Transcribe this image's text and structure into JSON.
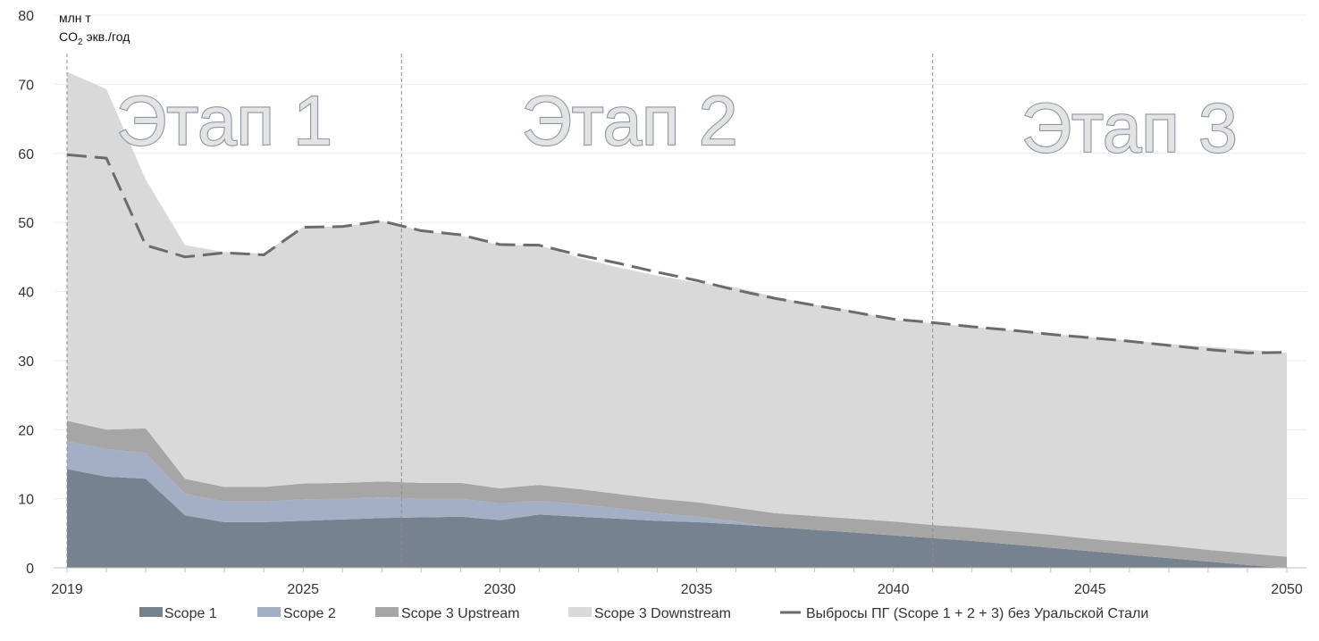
{
  "chart_data": {
    "type": "area",
    "title": "",
    "unit_label": {
      "line1": "млн т",
      "co2_prefix": "CO",
      "co2_sub": "2",
      "co2_suffix": " экв./год"
    },
    "ylim": [
      0,
      80
    ],
    "y_ticks": [
      0,
      10,
      20,
      30,
      40,
      50,
      60,
      70,
      80
    ],
    "x_ticks": [
      2019,
      2025,
      2030,
      2035,
      2040,
      2045,
      2050
    ],
    "stacked": true,
    "grid": true,
    "legend_position": "bottom",
    "x": [
      2019,
      2020,
      2021,
      2022,
      2023,
      2024,
      2025,
      2026,
      2027,
      2028,
      2029,
      2030,
      2031,
      2032,
      2033,
      2034,
      2035,
      2036,
      2037,
      2038,
      2039,
      2040,
      2041,
      2042,
      2043,
      2044,
      2045,
      2046,
      2047,
      2048,
      2049,
      2050
    ],
    "series": [
      {
        "name": "Scope 1",
        "color": "#76828f",
        "values": [
          14.3,
          13.2,
          12.9,
          7.6,
          6.6,
          6.6,
          6.8,
          7.0,
          7.2,
          7.3,
          7.4,
          6.9,
          7.7,
          7.4,
          7.1,
          6.8,
          6.6,
          6.3,
          5.9,
          5.5,
          5.1,
          4.7,
          4.3,
          3.9,
          3.4,
          2.9,
          2.4,
          1.9,
          1.4,
          0.9,
          0.4,
          0.0
        ]
      },
      {
        "name": "Scope 2",
        "color": "#a2afc4",
        "values": [
          4.0,
          4.0,
          3.7,
          3.1,
          3.0,
          3.0,
          3.1,
          3.0,
          3.0,
          2.7,
          2.6,
          2.4,
          2.0,
          1.8,
          1.5,
          1.1,
          0.8,
          0.4,
          0.0,
          0.0,
          0.0,
          0.0,
          0.0,
          0.0,
          0.0,
          0.0,
          0.0,
          0.0,
          0.0,
          0.0,
          0.0,
          0.0
        ]
      },
      {
        "name": "Scope 3 Upstream",
        "color": "#a6a6a6",
        "values": [
          3.0,
          2.8,
          3.6,
          2.2,
          2.1,
          2.1,
          2.3,
          2.3,
          2.3,
          2.3,
          2.3,
          2.2,
          2.3,
          2.2,
          2.1,
          2.1,
          2.1,
          2.0,
          2.0,
          2.0,
          2.0,
          2.0,
          1.9,
          1.9,
          1.9,
          1.9,
          1.8,
          1.8,
          1.8,
          1.7,
          1.7,
          1.6
        ]
      },
      {
        "name": "Scope 3 Downstream",
        "color": "#d9d9d9",
        "values": [
          50.5,
          49.3,
          36.0,
          33.8,
          34.0,
          33.8,
          37.1,
          37.1,
          37.7,
          36.5,
          35.8,
          35.2,
          34.7,
          33.5,
          32.8,
          32.3,
          31.8,
          31.9,
          31.3,
          30.6,
          30.1,
          29.2,
          29.2,
          29.1,
          29.1,
          29.1,
          29.2,
          29.2,
          29.2,
          29.4,
          29.5,
          29.5
        ]
      }
    ],
    "line_series": {
      "name": "Выбросы ПГ (Scope 1 + 2 + 3) без Уральской Стали",
      "color": "#6b6b6b",
      "style": "dashed",
      "values": [
        59.8,
        59.3,
        46.7,
        45.0,
        45.6,
        45.3,
        49.3,
        49.4,
        50.2,
        48.8,
        48.2,
        46.8,
        46.7,
        45.3,
        44.1,
        42.8,
        41.6,
        40.2,
        39.0,
        38.0,
        37.0,
        36.0,
        35.5,
        34.9,
        34.4,
        33.8,
        33.3,
        32.8,
        32.2,
        31.6,
        31.1,
        31.2
      ]
    },
    "phase_dividers": [
      2019,
      2027.5,
      2041
    ],
    "phases": [
      {
        "label": "Этап 1",
        "center_year": 2023
      },
      {
        "label": "Этап 2",
        "center_year": 2033.3
      },
      {
        "label": "Этап 3",
        "center_year": 2046
      }
    ]
  },
  "legend": {
    "scope1": "Scope 1",
    "scope2": "Scope 2",
    "scope3_up": "Scope 3 Upstream",
    "scope3_down": "Scope 3 Downstream",
    "line": "Выбросы ПГ (Scope 1 + 2 + 3) без Уральской Стали"
  }
}
